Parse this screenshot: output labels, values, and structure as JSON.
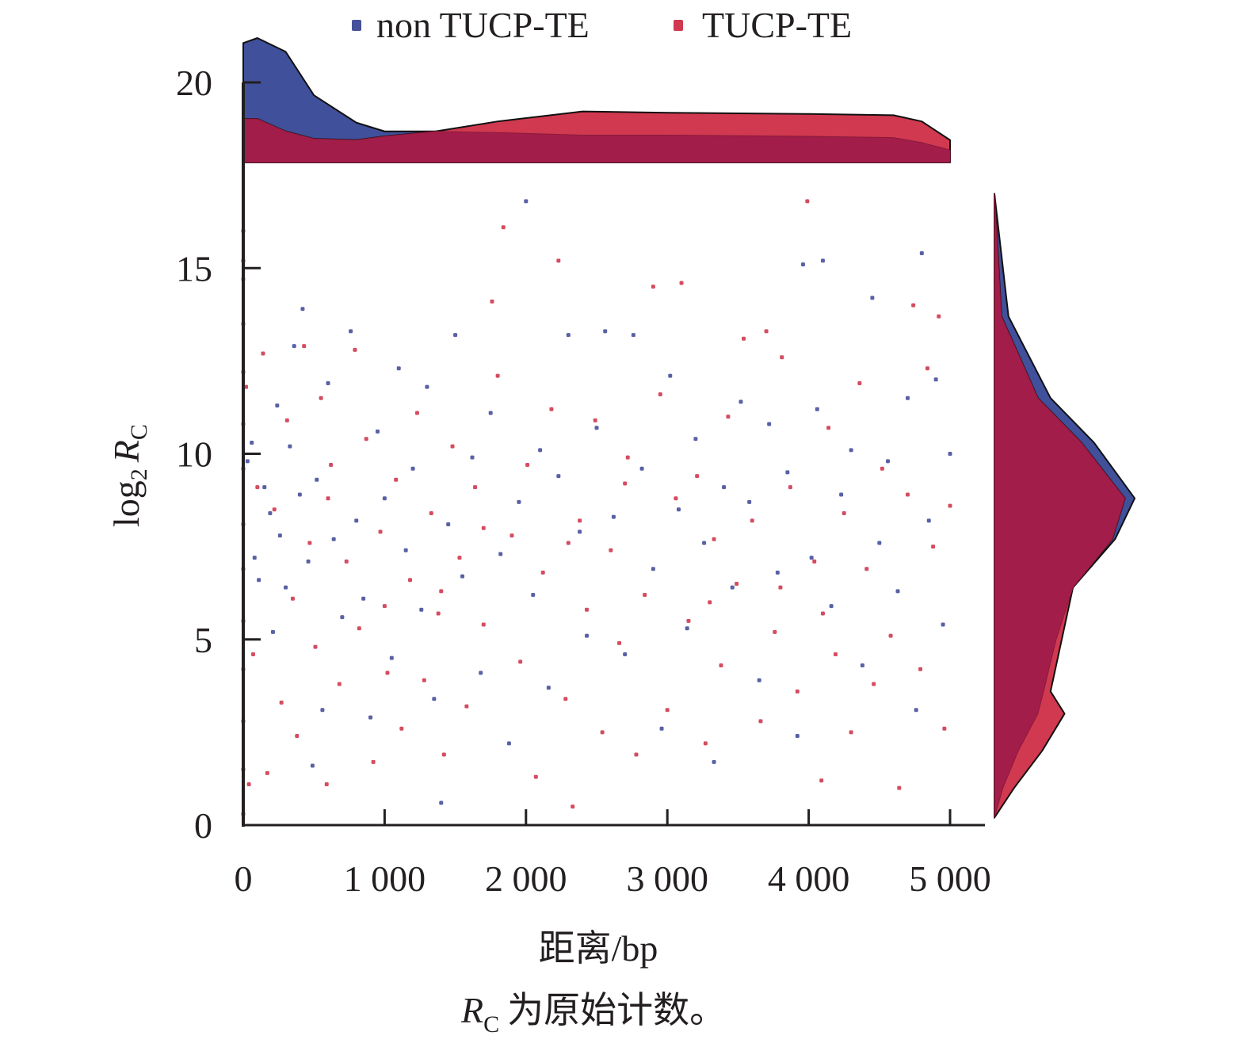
{
  "chart_data": {
    "type": "scatter",
    "xlabel": "距离/bp",
    "ylabel_main": "log",
    "ylabel_sub": "2",
    "ylabel_var": "R",
    "ylabel_var_sub": "C",
    "note_var": "R",
    "note_var_sub": "C",
    "note_text": "为原始计数。",
    "xlim": [
      0,
      5000
    ],
    "ylim": [
      0,
      20
    ],
    "xticks": [
      0,
      1000,
      2000,
      3000,
      4000,
      5000
    ],
    "xtick_labels": [
      "0",
      "1 000",
      "2 000",
      "3 000",
      "4 000",
      "5 000"
    ],
    "yticks": [
      0,
      5,
      10,
      15,
      20
    ],
    "ytick_labels": [
      "0",
      "5",
      "10",
      "15",
      "20"
    ],
    "legend_placement": "top",
    "colors": {
      "non": "#46509a",
      "tucp": "#d0394f",
      "overlap": "#a31d4a"
    },
    "series": [
      {
        "name": "non TUCP-TE",
        "points": [
          [
            0,
            0.3
          ],
          [
            0,
            1.5
          ],
          [
            0,
            2.8
          ],
          [
            0,
            4.2
          ],
          [
            0,
            5.5
          ],
          [
            0,
            6.9
          ],
          [
            0,
            8.1
          ],
          [
            0,
            9.6
          ],
          [
            0,
            10.8
          ],
          [
            0,
            12.2
          ],
          [
            0,
            13.5
          ],
          [
            0,
            15.2
          ],
          [
            0,
            16
          ],
          [
            30,
            9.8
          ],
          [
            60,
            10.3
          ],
          [
            80,
            7.2
          ],
          [
            110,
            6.6
          ],
          [
            150,
            9.1
          ],
          [
            190,
            8.4
          ],
          [
            210,
            5.2
          ],
          [
            240,
            11.3
          ],
          [
            260,
            7.8
          ],
          [
            300,
            6.4
          ],
          [
            330,
            10.2
          ],
          [
            360,
            12.9
          ],
          [
            400,
            8.9
          ],
          [
            420,
            13.9
          ],
          [
            460,
            7.1
          ],
          [
            490,
            1.6
          ],
          [
            520,
            9.3
          ],
          [
            560,
            3.1
          ],
          [
            600,
            11.9
          ],
          [
            640,
            7.7
          ],
          [
            700,
            5.6
          ],
          [
            760,
            13.3
          ],
          [
            800,
            8.2
          ],
          [
            850,
            6.1
          ],
          [
            900,
            2.9
          ],
          [
            950,
            10.6
          ],
          [
            1000,
            8.8
          ],
          [
            1050,
            4.5
          ],
          [
            1100,
            12.3
          ],
          [
            1150,
            7.4
          ],
          [
            1200,
            9.6
          ],
          [
            1260,
            5.8
          ],
          [
            1300,
            11.8
          ],
          [
            1350,
            3.4
          ],
          [
            1400,
            0.6
          ],
          [
            1450,
            8.1
          ],
          [
            1500,
            13.2
          ],
          [
            1550,
            6.7
          ],
          [
            1620,
            9.9
          ],
          [
            1680,
            4.1
          ],
          [
            1750,
            11.1
          ],
          [
            1820,
            7.3
          ],
          [
            1880,
            2.2
          ],
          [
            1950,
            8.7
          ],
          [
            2000,
            16.8
          ],
          [
            2050,
            6.2
          ],
          [
            2100,
            10.1
          ],
          [
            2160,
            3.7
          ],
          [
            2230,
            9.4
          ],
          [
            2300,
            13.2
          ],
          [
            2380,
            7.9
          ],
          [
            2430,
            5.1
          ],
          [
            2500,
            10.7
          ],
          [
            2560,
            13.3
          ],
          [
            2620,
            8.3
          ],
          [
            2700,
            4.6
          ],
          [
            2760,
            13.2
          ],
          [
            2820,
            9.6
          ],
          [
            2900,
            6.9
          ],
          [
            2960,
            2.6
          ],
          [
            3020,
            12.1
          ],
          [
            3080,
            8.5
          ],
          [
            3140,
            5.3
          ],
          [
            3200,
            10.4
          ],
          [
            3260,
            7.6
          ],
          [
            3330,
            1.7
          ],
          [
            3400,
            9.1
          ],
          [
            3460,
            6.4
          ],
          [
            3520,
            11.4
          ],
          [
            3580,
            8.7
          ],
          [
            3650,
            3.9
          ],
          [
            3720,
            10.8
          ],
          [
            3780,
            6.8
          ],
          [
            3850,
            9.5
          ],
          [
            3920,
            2.4
          ],
          [
            3960,
            15.1
          ],
          [
            4020,
            7.2
          ],
          [
            4060,
            11.2
          ],
          [
            4100,
            15.2
          ],
          [
            4160,
            5.9
          ],
          [
            4230,
            8.9
          ],
          [
            4300,
            10.1
          ],
          [
            4380,
            4.3
          ],
          [
            4450,
            14.2
          ],
          [
            4500,
            7.6
          ],
          [
            4560,
            9.8
          ],
          [
            4630,
            6.3
          ],
          [
            4700,
            11.5
          ],
          [
            4760,
            3.1
          ],
          [
            4800,
            15.4
          ],
          [
            4850,
            8.2
          ],
          [
            4900,
            12.0
          ],
          [
            4950,
            5.4
          ],
          [
            5000,
            10.0
          ]
        ]
      },
      {
        "name": "TUCP-TE",
        "points": [
          [
            0,
            14.7
          ],
          [
            20,
            11.8
          ],
          [
            40,
            1.1
          ],
          [
            70,
            4.6
          ],
          [
            100,
            9.1
          ],
          [
            140,
            12.7
          ],
          [
            170,
            1.4
          ],
          [
            220,
            8.5
          ],
          [
            270,
            3.3
          ],
          [
            310,
            10.9
          ],
          [
            350,
            6.1
          ],
          [
            380,
            2.4
          ],
          [
            430,
            12.9
          ],
          [
            470,
            7.6
          ],
          [
            510,
            4.8
          ],
          [
            550,
            11.5
          ],
          [
            590,
            1.1
          ],
          [
            620,
            9.7
          ],
          [
            680,
            3.8
          ],
          [
            730,
            7.1
          ],
          [
            790,
            12.8
          ],
          [
            820,
            5.3
          ],
          [
            870,
            10.4
          ],
          [
            920,
            1.7
          ],
          [
            970,
            7.9
          ],
          [
            1020,
            4.1
          ],
          [
            1080,
            9.3
          ],
          [
            1120,
            2.6
          ],
          [
            1180,
            6.6
          ],
          [
            1230,
            11.1
          ],
          [
            1280,
            3.9
          ],
          [
            1330,
            8.4
          ],
          [
            1380,
            5.7
          ],
          [
            1420,
            1.9
          ],
          [
            1480,
            10.2
          ],
          [
            1530,
            7.2
          ],
          [
            1580,
            3.2
          ],
          [
            1640,
            9.1
          ],
          [
            1700,
            5.4
          ],
          [
            1760,
            14.1
          ],
          [
            1800,
            12.1
          ],
          [
            1840,
            16.1
          ],
          [
            1900,
            7.8
          ],
          [
            1960,
            4.4
          ],
          [
            2010,
            9.7
          ],
          [
            2070,
            1.3
          ],
          [
            2120,
            6.8
          ],
          [
            2180,
            11.2
          ],
          [
            2230,
            15.2
          ],
          [
            2280,
            3.4
          ],
          [
            2330,
            0.5
          ],
          [
            2380,
            8.2
          ],
          [
            2430,
            5.8
          ],
          [
            2490,
            10.9
          ],
          [
            2540,
            2.5
          ],
          [
            2600,
            7.4
          ],
          [
            2660,
            4.9
          ],
          [
            2720,
            9.9
          ],
          [
            2780,
            1.9
          ],
          [
            2840,
            6.2
          ],
          [
            2900,
            14.5
          ],
          [
            2950,
            11.6
          ],
          [
            3000,
            3.1
          ],
          [
            3060,
            8.8
          ],
          [
            3100,
            14.6
          ],
          [
            3150,
            5.5
          ],
          [
            3210,
            9.4
          ],
          [
            3270,
            2.2
          ],
          [
            3330,
            7.7
          ],
          [
            3380,
            4.3
          ],
          [
            3430,
            11.0
          ],
          [
            3490,
            6.5
          ],
          [
            3540,
            13.1
          ],
          [
            3600,
            8.2
          ],
          [
            3660,
            2.8
          ],
          [
            3700,
            13.3
          ],
          [
            3760,
            5.2
          ],
          [
            3810,
            12.6
          ],
          [
            3870,
            9.1
          ],
          [
            3920,
            3.6
          ],
          [
            3990,
            16.8
          ],
          [
            4040,
            7.1
          ],
          [
            4090,
            1.2
          ],
          [
            4140,
            10.7
          ],
          [
            4190,
            4.6
          ],
          [
            4250,
            8.4
          ],
          [
            4300,
            2.5
          ],
          [
            4360,
            11.9
          ],
          [
            4410,
            6.9
          ],
          [
            4460,
            3.8
          ],
          [
            4520,
            9.6
          ],
          [
            4580,
            5.1
          ],
          [
            4640,
            1.0
          ],
          [
            4700,
            8.9
          ],
          [
            4740,
            14.0
          ],
          [
            4790,
            4.2
          ],
          [
            4840,
            12.3
          ],
          [
            4880,
            7.5
          ],
          [
            4920,
            13.7
          ],
          [
            4960,
            2.6
          ],
          [
            5000,
            8.6
          ],
          [
            1400,
            6.3
          ],
          [
            2300,
            7.6
          ],
          [
            2700,
            9.2
          ],
          [
            3300,
            6.0
          ],
          [
            3800,
            6.4
          ],
          [
            4100,
            5.7
          ],
          [
            600,
            8.8
          ],
          [
            1000,
            5.9
          ],
          [
            1700,
            8.0
          ]
        ]
      }
    ],
    "marginal_x": {
      "x": [
        0,
        100,
        300,
        500,
        800,
        1000,
        1360,
        1800,
        2400,
        3000,
        4000,
        4600,
        4800,
        5000
      ],
      "non": [
        0.96,
        1.0,
        0.89,
        0.54,
        0.32,
        0.25,
        0.25,
        0.24,
        0.22,
        0.22,
        0.21,
        0.2,
        0.16,
        0.1
      ],
      "tucp": [
        0.35,
        0.35,
        0.25,
        0.19,
        0.18,
        0.21,
        0.25,
        0.33,
        0.41,
        0.4,
        0.39,
        0.38,
        0.33,
        0.18
      ]
    },
    "marginal_y": {
      "y": [
        0.2,
        1,
        2,
        3,
        3.6,
        5,
        6.4,
        7.7,
        8.8,
        10.3,
        11.5,
        13.7,
        17
      ],
      "non": [
        0,
        0.06,
        0.17,
        0.31,
        0.35,
        0.44,
        0.56,
        0.86,
        1.0,
        0.71,
        0.4,
        0.1,
        0
      ],
      "tucp": [
        0,
        0.14,
        0.34,
        0.5,
        0.4,
        0.48,
        0.56,
        0.84,
        0.93,
        0.62,
        0.31,
        0.05,
        0
      ]
    }
  }
}
